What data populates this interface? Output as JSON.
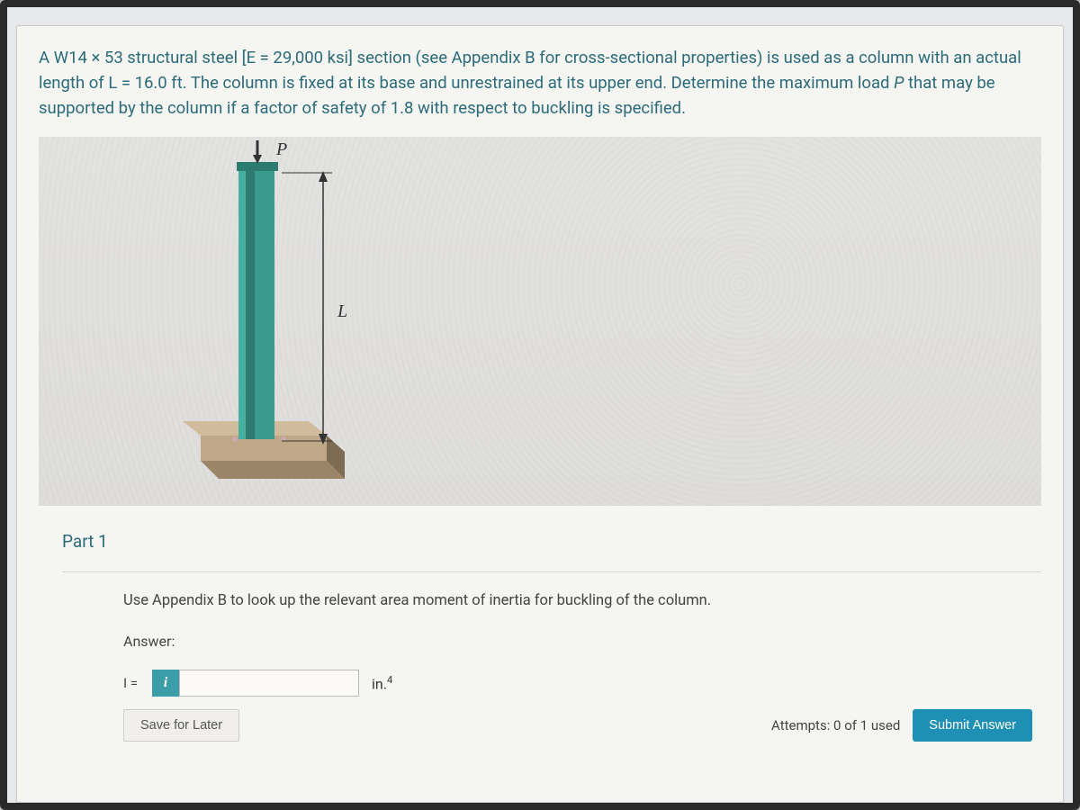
{
  "problem": {
    "text_html": "A W14 × 53 structural steel [E = 29,000 ksi] section (see Appendix B for cross-sectional properties) is used as a column with an actual length of L = 16.0 ft. The column is fixed at its base and unrestrained at its upper end.  Determine the maximum load <i>P</i> that may be supported by the column if a factor of safety of 1.8 with respect to buckling is specified."
  },
  "diagram": {
    "load_label": "P",
    "length_label": "L",
    "column_color": "#3a9a8e",
    "column_shadow": "#2d7a70",
    "base_top": "#bfa888",
    "base_front": "#9a8568",
    "base_side": "#7d6c52",
    "arrow_color": "#333333",
    "label_color": "#333333",
    "bg_color": "#e2e2e0"
  },
  "part": {
    "title": "Part 1",
    "instruction": "Use Appendix B to look up the relevant area moment of inertia for buckling of the column.",
    "answer_label": "Answer:",
    "var_label": "I =",
    "info_icon": "i",
    "input_value": "",
    "unit_html": "in.<sup>4</sup>"
  },
  "footer": {
    "save_label": "Save for Later",
    "attempts": "Attempts: 0 of 1 used",
    "submit_label": "Submit Answer"
  },
  "colors": {
    "link_teal": "#2b6b7a",
    "btn_teal": "#3a9da8",
    "submit_blue": "#1e8fb5"
  }
}
